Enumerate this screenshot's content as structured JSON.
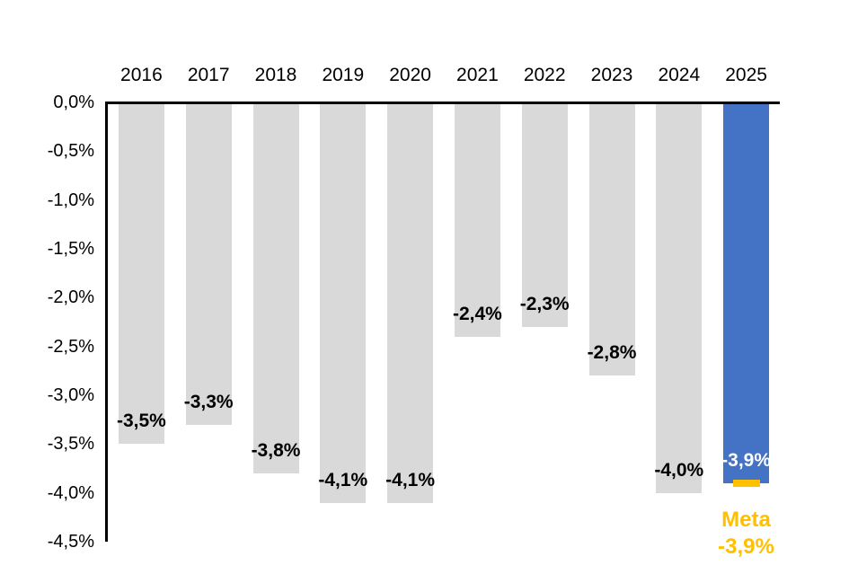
{
  "chart_data": {
    "type": "bar",
    "title": "",
    "xlabel": "",
    "ylabel": "",
    "categories": [
      "2016",
      "2017",
      "2018",
      "2019",
      "2020",
      "2021",
      "2022",
      "2023",
      "2024",
      "2025"
    ],
    "values": [
      -3.5,
      -3.3,
      -3.8,
      -4.1,
      -4.1,
      -2.4,
      -2.3,
      -2.8,
      -4.0,
      -3.9
    ],
    "bar_labels": [
      "-3,5%",
      "-3,3%",
      "-3,8%",
      "-4,1%",
      "-4,1%",
      "-2,4%",
      "-2,3%",
      "-2,8%",
      "-4,0%",
      "-3,9%"
    ],
    "highlight_index": 9,
    "ylim": [
      -4.5,
      0
    ],
    "y_ticks": [
      {
        "value": 0.0,
        "label": "0,0%"
      },
      {
        "value": -0.5,
        "label": "-0,5%"
      },
      {
        "value": -1.0,
        "label": "-1,0%"
      },
      {
        "value": -1.5,
        "label": "-1,5%"
      },
      {
        "value": -2.0,
        "label": "-2,0%"
      },
      {
        "value": -2.5,
        "label": "-2,5%"
      },
      {
        "value": -3.0,
        "label": "-3,0%"
      },
      {
        "value": -3.5,
        "label": "-3,5%"
      },
      {
        "value": -4.0,
        "label": "-4,0%"
      },
      {
        "value": -4.5,
        "label": "-4,5%"
      }
    ],
    "grid": false,
    "legend": null,
    "target_marker": {
      "value": -3.9,
      "label_line1": "Meta",
      "label_line2": "-3,9%"
    },
    "colors": {
      "bar_default": "#d9d9d9",
      "bar_highlight": "#4472c4",
      "label_default": "#000000",
      "label_highlight": "#ffffff",
      "target": "#ffc000",
      "axis": "#000000"
    }
  }
}
